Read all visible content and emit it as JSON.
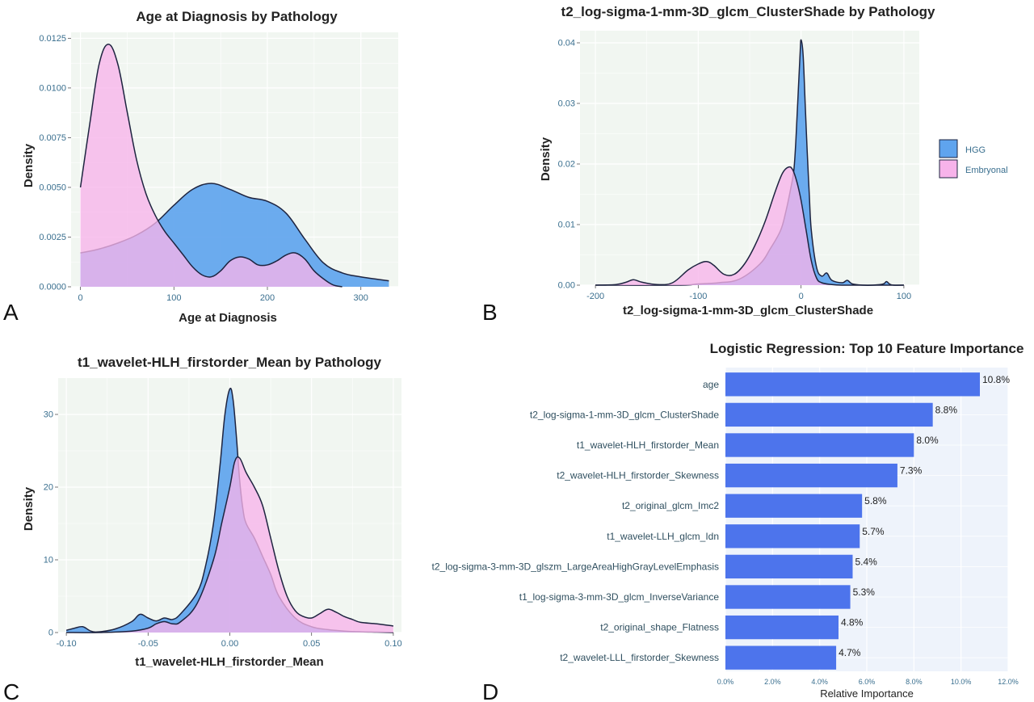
{
  "colors": {
    "hgg": "#5fa4ee",
    "embryonal": "#f7b3ea",
    "bar": "#4d74ec",
    "panel_bg": "#f1f6f1",
    "panel_bg_d": "#eef3fb",
    "grid": "#ffffff",
    "line": "#1e2440"
  },
  "legend": {
    "items": [
      {
        "label": "HGG",
        "color": "#5fa4ee"
      },
      {
        "label": "Embryonal",
        "color": "#f7b3ea"
      }
    ]
  },
  "panel_letters": [
    "A",
    "B",
    "C",
    "D"
  ],
  "chart_data": [
    {
      "id": "A",
      "type": "area",
      "title": "Age at Diagnosis by Pathology",
      "xlabel": "Age at Diagnosis",
      "ylabel": "Density",
      "xlim": [
        -10,
        340
      ],
      "ylim": [
        0,
        0.0128
      ],
      "xticks": [
        0,
        100,
        200,
        300
      ],
      "xtick_labels": [
        "0",
        "100",
        "200",
        "300"
      ],
      "yticks": [
        0,
        0.0025,
        0.005,
        0.0075,
        0.01,
        0.0125
      ],
      "ytick_labels": [
        "0.0000",
        "0.0025",
        "0.0050",
        "0.0075",
        "0.0100",
        "0.0125"
      ],
      "grid": true,
      "series": [
        {
          "name": "HGG",
          "x": [
            0,
            20,
            40,
            60,
            80,
            100,
            120,
            140,
            160,
            180,
            200,
            220,
            240,
            260,
            280,
            300,
            330
          ],
          "y": [
            0.0017,
            0.0019,
            0.0022,
            0.0026,
            0.0032,
            0.0041,
            0.0049,
            0.0052,
            0.0049,
            0.0045,
            0.0043,
            0.0037,
            0.0024,
            0.0012,
            0.0007,
            0.0005,
            0.0003
          ]
        },
        {
          "name": "Embryonal",
          "x": [
            0,
            10,
            20,
            30,
            40,
            50,
            60,
            70,
            80,
            90,
            100,
            110,
            120,
            130,
            140,
            150,
            160,
            170,
            180,
            190,
            200,
            210,
            220,
            230,
            240,
            250,
            260,
            270,
            280
          ],
          "y": [
            0.005,
            0.0082,
            0.0112,
            0.0122,
            0.0112,
            0.0088,
            0.0064,
            0.0047,
            0.0036,
            0.0028,
            0.0022,
            0.0016,
            0.001,
            0.0006,
            0.0005,
            0.0008,
            0.0013,
            0.0015,
            0.0014,
            0.0011,
            0.0011,
            0.0013,
            0.0016,
            0.0017,
            0.0014,
            0.0008,
            0.0004,
            0.0001,
            0.0
          ]
        }
      ]
    },
    {
      "id": "B",
      "type": "area",
      "title": "t2_log-sigma-1-mm-3D_glcm_ClusterShade by Pathology",
      "xlabel": "t2_log-sigma-1-mm-3D_glcm_ClusterShade",
      "ylabel": "Density",
      "xlim": [
        -215,
        115
      ],
      "ylim": [
        0,
        0.042
      ],
      "xticks": [
        -200,
        -100,
        0,
        100
      ],
      "xtick_labels": [
        "-200",
        "-100",
        "0",
        "100"
      ],
      "yticks": [
        0,
        0.01,
        0.02,
        0.03,
        0.04
      ],
      "ytick_labels": [
        "0.00",
        "0.01",
        "0.02",
        "0.03",
        "0.04"
      ],
      "grid": true,
      "series": [
        {
          "name": "HGG",
          "x": [
            -200,
            -120,
            -100,
            -80,
            -60,
            -40,
            -30,
            -20,
            -15,
            -10,
            -7,
            -5,
            -3,
            -1,
            0,
            2,
            4,
            6,
            8,
            10,
            15,
            20,
            25,
            30,
            40,
            45,
            50,
            60,
            70,
            80,
            83,
            86,
            90,
            100
          ],
          "y": [
            0,
            0,
            0.0002,
            0.0004,
            0.001,
            0.0035,
            0.006,
            0.009,
            0.012,
            0.016,
            0.019,
            0.024,
            0.031,
            0.038,
            0.0405,
            0.038,
            0.03,
            0.022,
            0.015,
            0.009,
            0.003,
            0.0015,
            0.002,
            0.0008,
            0.0004,
            0.0008,
            0.0002,
            0,
            0,
            0.0002,
            0.0006,
            0.0002,
            0,
            0
          ]
        },
        {
          "name": "Embryonal",
          "x": [
            -200,
            -180,
            -170,
            -163,
            -155,
            -140,
            -125,
            -110,
            -100,
            -92,
            -85,
            -75,
            -65,
            -55,
            -45,
            -35,
            -25,
            -18,
            -12,
            -8,
            -4,
            0,
            5,
            10,
            15,
            20,
            30,
            40,
            60,
            80,
            100
          ],
          "y": [
            0,
            0.0001,
            0.0005,
            0.0009,
            0.0005,
            0.0001,
            0.0004,
            0.0025,
            0.0035,
            0.0039,
            0.0033,
            0.0018,
            0.0018,
            0.0035,
            0.0065,
            0.0105,
            0.0155,
            0.0185,
            0.0195,
            0.019,
            0.017,
            0.014,
            0.009,
            0.004,
            0.0012,
            0.0004,
            0.0001,
            0,
            0,
            0,
            0
          ]
        }
      ]
    },
    {
      "id": "C",
      "type": "area",
      "title": "t1_wavelet-HLH_firstorder_Mean by Pathology",
      "xlabel": "t1_wavelet-HLH_firstorder_Mean",
      "ylabel": "Density",
      "xlim": [
        -0.105,
        0.105
      ],
      "ylim": [
        0,
        35
      ],
      "xticks": [
        -0.1,
        -0.05,
        0.0,
        0.05,
        0.1
      ],
      "xtick_labels": [
        "-0.10",
        "-0.05",
        "0.00",
        "0.05",
        "0.10"
      ],
      "yticks": [
        0,
        10,
        20,
        30
      ],
      "ytick_labels": [
        "0",
        "10",
        "20",
        "30"
      ],
      "grid": true,
      "series": [
        {
          "name": "HGG",
          "x": [
            -0.1,
            -0.095,
            -0.09,
            -0.085,
            -0.08,
            -0.07,
            -0.06,
            -0.055,
            -0.05,
            -0.045,
            -0.04,
            -0.035,
            -0.03,
            -0.02,
            -0.015,
            -0.01,
            -0.006,
            -0.003,
            0,
            0.002,
            0.004,
            0.006,
            0.008,
            0.01,
            0.015,
            0.02,
            0.025,
            0.03,
            0.04,
            0.05,
            0.06,
            0.07,
            0.08,
            0.09,
            0.1
          ],
          "y": [
            0.3,
            0.6,
            0.8,
            0.2,
            0.1,
            0.5,
            1.5,
            2.5,
            2.0,
            1.6,
            2.0,
            1.8,
            2.6,
            5.5,
            9.0,
            15.0,
            23.0,
            30.0,
            33.5,
            32.0,
            27.0,
            21.0,
            17.0,
            15.0,
            13.0,
            10.5,
            8.0,
            5.0,
            2.0,
            0.8,
            0.4,
            0.2,
            0.1,
            0.05,
            0.0
          ]
        },
        {
          "name": "Embryonal",
          "x": [
            -0.1,
            -0.08,
            -0.06,
            -0.05,
            -0.045,
            -0.04,
            -0.035,
            -0.03,
            -0.02,
            -0.01,
            -0.005,
            0,
            0.003,
            0.006,
            0.01,
            0.015,
            0.02,
            0.025,
            0.03,
            0.035,
            0.04,
            0.045,
            0.05,
            0.055,
            0.06,
            0.065,
            0.07,
            0.075,
            0.08,
            0.09,
            0.1
          ],
          "y": [
            0,
            0,
            0.2,
            0.6,
            1.2,
            1.5,
            1.2,
            1.5,
            4.0,
            10.0,
            15.0,
            20.0,
            23.5,
            24.0,
            22.0,
            20.0,
            17.5,
            13.0,
            8.5,
            5.0,
            3.0,
            2.2,
            2.0,
            2.6,
            3.2,
            2.8,
            2.2,
            1.8,
            1.4,
            1.2,
            0.9
          ]
        }
      ]
    },
    {
      "id": "D",
      "type": "bar",
      "title": "Logistic Regression: Top 10 Feature Importance",
      "xlabel": "Relative Importance",
      "ylabel": "",
      "xlim": [
        0,
        12
      ],
      "xticks": [
        0,
        2,
        4,
        6,
        8,
        10,
        12
      ],
      "xtick_labels": [
        "0.0%",
        "2.0%",
        "4.0%",
        "6.0%",
        "8.0%",
        "10.0%",
        "12.0%"
      ],
      "grid": true,
      "categories": [
        "age",
        "t2_log-sigma-1-mm-3D_glcm_ClusterShade",
        "t1_wavelet-HLH_firstorder_Mean",
        "t2_wavelet-HLH_firstorder_Skewness",
        "t2_original_glcm_Imc2",
        "t1_wavelet-LLH_glcm_Idn",
        "t2_log-sigma-3-mm-3D_glszm_LargeAreaHighGrayLevelEmphasis",
        "t1_log-sigma-3-mm-3D_glcm_InverseVariance",
        "t2_original_shape_Flatness",
        "t2_wavelet-LLL_firstorder_Skewness"
      ],
      "values": [
        10.8,
        8.8,
        8.0,
        7.3,
        5.8,
        5.7,
        5.4,
        5.3,
        4.8,
        4.7
      ],
      "value_labels": [
        "10.8%",
        "8.8%",
        "8.0%",
        "7.3%",
        "5.8%",
        "5.7%",
        "5.4%",
        "5.3%",
        "4.8%",
        "4.7%"
      ]
    }
  ]
}
